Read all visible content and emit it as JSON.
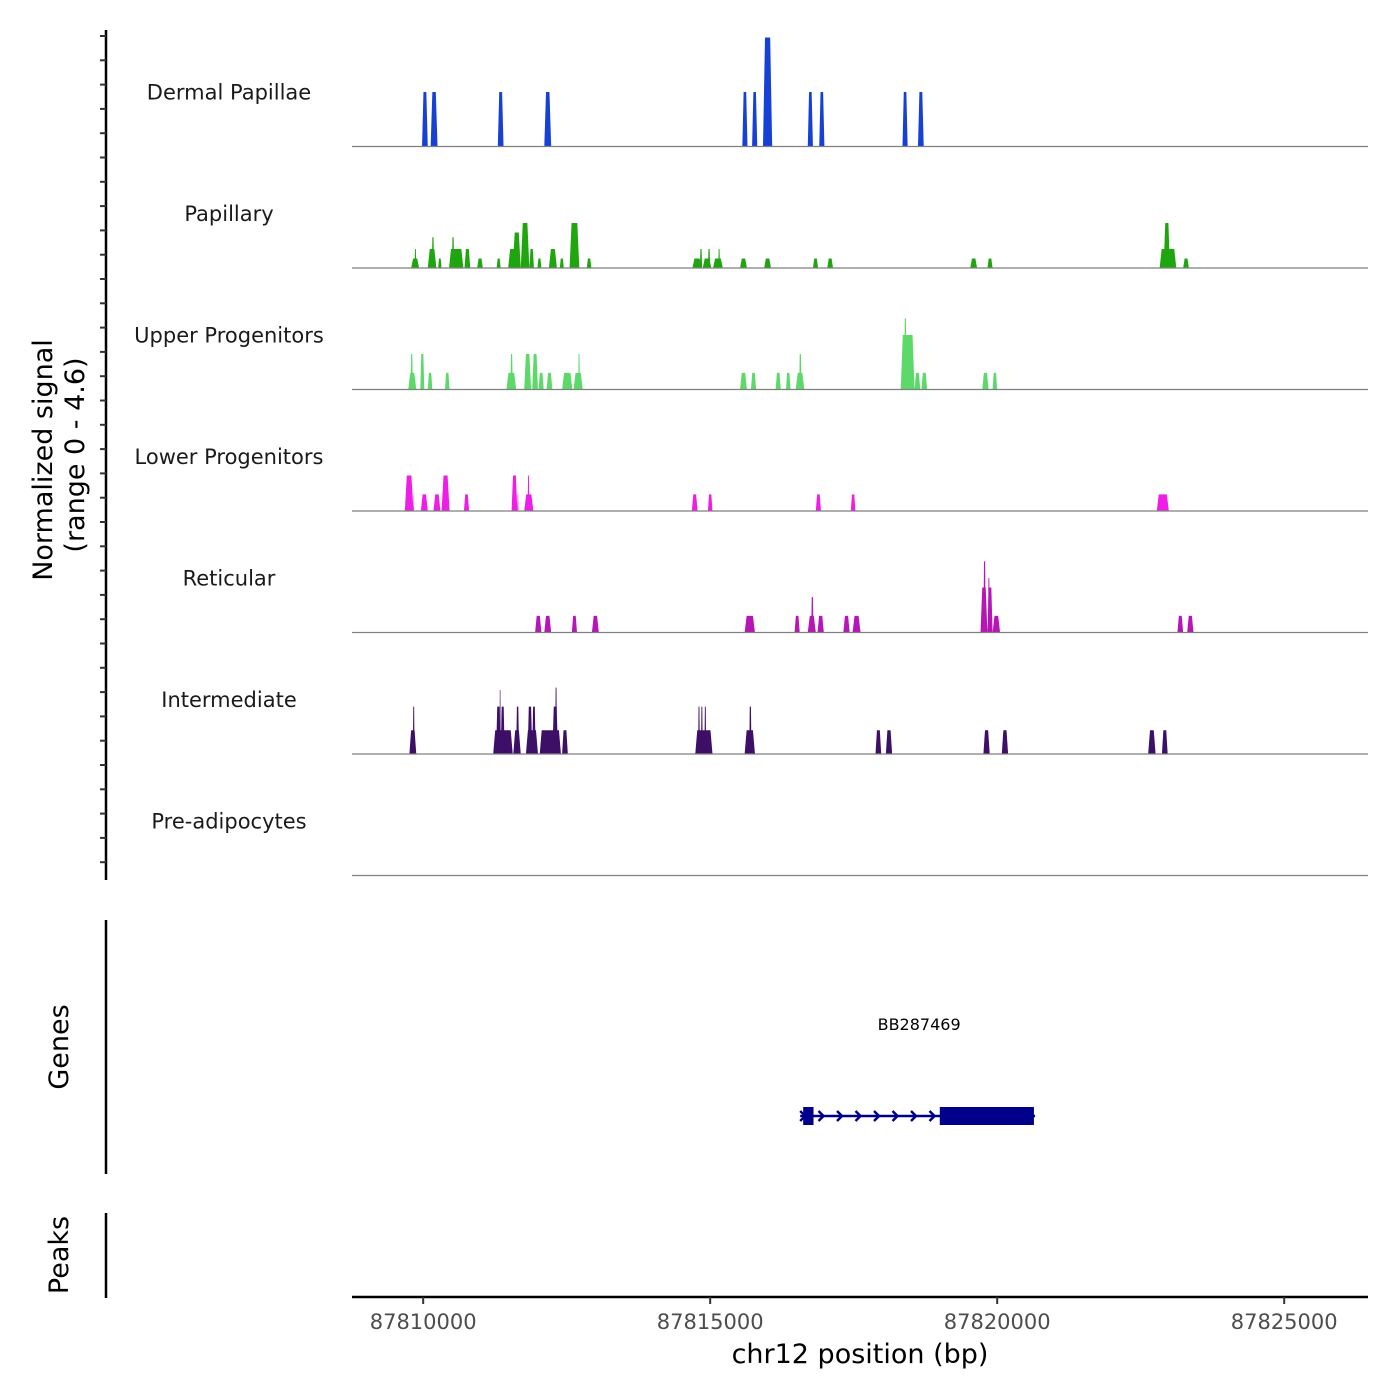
{
  "chart_data": {
    "type": "area",
    "title": "",
    "xlabel": "chr12 position (bp)",
    "ylabel": "Normalized signal\n(range 0 - 4.6)",
    "ylabel_lines": [
      "Normalized signal",
      "(range 0 - 4.6)"
    ],
    "ylim": [
      0,
      4.6
    ],
    "xlim": [
      87808760,
      87826460
    ],
    "x_ticks": [
      87810000,
      87815000,
      87820000,
      87825000
    ],
    "x_tick_labels": [
      "87810000",
      "87815000",
      "87820000",
      "87825000"
    ],
    "grid": false,
    "legend": "none",
    "tracks": [
      {
        "name": "Dermal Papillae",
        "color": "#1740d6",
        "peaks": [
          [
            87809980,
            87810080,
            2.3
          ],
          [
            87810130,
            87810250,
            2.3
          ],
          [
            87811300,
            87811400,
            2.3
          ],
          [
            87812110,
            87812230,
            2.3
          ],
          [
            87815560,
            87815650,
            2.3
          ],
          [
            87815730,
            87815820,
            2.3
          ],
          [
            87815920,
            87816080,
            4.6
          ],
          [
            87816700,
            87816790,
            2.3
          ],
          [
            87816900,
            87816990,
            2.3
          ],
          [
            87818350,
            87818440,
            2.3
          ],
          [
            87818620,
            87818720,
            2.3
          ]
        ]
      },
      {
        "name": "Papillary",
        "color": "#1fa60f",
        "peaks": [
          [
            87809790,
            87809930,
            0.4
          ],
          [
            87809850,
            87809880,
            0.8
          ],
          [
            87810080,
            87810230,
            0.8
          ],
          [
            87810150,
            87810190,
            1.3
          ],
          [
            87810260,
            87810320,
            0.4
          ],
          [
            87810450,
            87810700,
            0.8
          ],
          [
            87810500,
            87810540,
            1.3
          ],
          [
            87810720,
            87810820,
            0.8
          ],
          [
            87810940,
            87811040,
            0.4
          ],
          [
            87811280,
            87811350,
            0.4
          ],
          [
            87811480,
            87811700,
            0.8
          ],
          [
            87811560,
            87811700,
            1.5
          ],
          [
            87811700,
            87811850,
            1.9
          ],
          [
            87811850,
            87811930,
            0.8
          ],
          [
            87811990,
            87812060,
            0.4
          ],
          [
            87812190,
            87812330,
            0.8
          ],
          [
            87812380,
            87812450,
            0.4
          ],
          [
            87812550,
            87812720,
            1.9
          ],
          [
            87812850,
            87812930,
            0.4
          ],
          [
            87814690,
            87814850,
            0.4
          ],
          [
            87814820,
            87814860,
            0.8
          ],
          [
            87814870,
            87815020,
            0.4
          ],
          [
            87814960,
            87815000,
            0.8
          ],
          [
            87815050,
            87815220,
            0.4
          ],
          [
            87815140,
            87815170,
            0.8
          ],
          [
            87815520,
            87815640,
            0.4
          ],
          [
            87815940,
            87816060,
            0.4
          ],
          [
            87816790,
            87816880,
            0.4
          ],
          [
            87817040,
            87817140,
            0.4
          ],
          [
            87819530,
            87819650,
            0.4
          ],
          [
            87819830,
            87819920,
            0.4
          ],
          [
            87822830,
            87823120,
            0.8
          ],
          [
            87822900,
            87823010,
            1.9
          ],
          [
            87823240,
            87823340,
            0.4
          ]
        ]
      },
      {
        "name": "Upper Progenitors",
        "color": "#5dd96a",
        "peaks": [
          [
            87809740,
            87809880,
            0.7
          ],
          [
            87809780,
            87809820,
            1.5
          ],
          [
            87809950,
            87810020,
            1.5
          ],
          [
            87810080,
            87810160,
            0.7
          ],
          [
            87810380,
            87810460,
            0.7
          ],
          [
            87811450,
            87811620,
            0.7
          ],
          [
            87811520,
            87811560,
            1.5
          ],
          [
            87811760,
            87811880,
            1.5
          ],
          [
            87811900,
            87812000,
            1.5
          ],
          [
            87812010,
            87812100,
            0.7
          ],
          [
            87812150,
            87812250,
            0.7
          ],
          [
            87812420,
            87812600,
            0.7
          ],
          [
            87812620,
            87812780,
            0.7
          ],
          [
            87812700,
            87812730,
            1.5
          ],
          [
            87815520,
            87815640,
            0.7
          ],
          [
            87815710,
            87815800,
            0.7
          ],
          [
            87816140,
            87816230,
            0.7
          ],
          [
            87816320,
            87816400,
            0.7
          ],
          [
            87816490,
            87816640,
            0.7
          ],
          [
            87816550,
            87816590,
            1.5
          ],
          [
            87818320,
            87818560,
            2.3
          ],
          [
            87818380,
            87818420,
            3.0
          ],
          [
            87818560,
            87818660,
            0.7
          ],
          [
            87818680,
            87818780,
            0.7
          ],
          [
            87819740,
            87819850,
            0.7
          ],
          [
            87819920,
            87820000,
            0.7
          ]
        ]
      },
      {
        "name": "Lower Progenitors",
        "color": "#ee1ee6",
        "peaks": [
          [
            87809680,
            87809830,
            1.5
          ],
          [
            87809830,
            87809840,
            0.7
          ],
          [
            87809960,
            87810080,
            0.7
          ],
          [
            87810180,
            87810300,
            0.7
          ],
          [
            87810320,
            87810460,
            1.5
          ],
          [
            87810710,
            87810800,
            0.7
          ],
          [
            87811540,
            87811640,
            1.5
          ],
          [
            87811640,
            87811660,
            0.7
          ],
          [
            87811760,
            87811920,
            0.7
          ],
          [
            87811820,
            87811850,
            1.5
          ],
          [
            87814680,
            87814780,
            0.7
          ],
          [
            87814960,
            87815040,
            0.7
          ],
          [
            87816840,
            87816930,
            0.7
          ],
          [
            87817450,
            87817530,
            0.7
          ],
          [
            87822780,
            87822990,
            0.7
          ]
        ]
      },
      {
        "name": "Reticular",
        "color": "#b516b5",
        "peaks": [
          [
            87811950,
            87812060,
            0.7
          ],
          [
            87812110,
            87812230,
            0.7
          ],
          [
            87812590,
            87812680,
            0.7
          ],
          [
            87812940,
            87813060,
            0.7
          ],
          [
            87815600,
            87815780,
            0.7
          ],
          [
            87816470,
            87816560,
            0.7
          ],
          [
            87816700,
            87816840,
            0.7
          ],
          [
            87816760,
            87816800,
            1.5
          ],
          [
            87816870,
            87816980,
            0.7
          ],
          [
            87817320,
            87817430,
            0.7
          ],
          [
            87817480,
            87817620,
            0.7
          ],
          [
            87819710,
            87819830,
            1.9
          ],
          [
            87819760,
            87819800,
            3.0
          ],
          [
            87819830,
            87819920,
            1.9
          ],
          [
            87819840,
            87819870,
            2.3
          ],
          [
            87819920,
            87820050,
            0.7
          ],
          [
            87823140,
            87823240,
            0.7
          ],
          [
            87823310,
            87823420,
            0.7
          ]
        ]
      },
      {
        "name": "Intermediate",
        "color": "#3d0f66",
        "peaks": [
          [
            87809760,
            87809880,
            1.0
          ],
          [
            87809820,
            87809850,
            2.0
          ],
          [
            87811220,
            87811560,
            1.0
          ],
          [
            87811270,
            87811350,
            2.0
          ],
          [
            87811330,
            87811350,
            2.7
          ],
          [
            87811350,
            87811420,
            2.0
          ],
          [
            87811570,
            87811700,
            1.0
          ],
          [
            87811620,
            87811670,
            2.0
          ],
          [
            87811790,
            87812000,
            1.0
          ],
          [
            87811820,
            87811900,
            2.0
          ],
          [
            87811900,
            87811960,
            2.0
          ],
          [
            87812030,
            87812400,
            1.0
          ],
          [
            87812250,
            87812350,
            2.0
          ],
          [
            87812300,
            87812330,
            2.8
          ],
          [
            87812420,
            87812520,
            1.0
          ],
          [
            87814740,
            87815040,
            1.0
          ],
          [
            87814790,
            87814820,
            2.0
          ],
          [
            87814840,
            87814870,
            2.0
          ],
          [
            87814900,
            87814930,
            2.0
          ],
          [
            87815600,
            87815780,
            1.0
          ],
          [
            87815680,
            87815720,
            2.0
          ],
          [
            87817880,
            87817980,
            1.0
          ],
          [
            87818060,
            87818170,
            1.0
          ],
          [
            87819760,
            87819870,
            1.0
          ],
          [
            87820080,
            87820190,
            1.0
          ],
          [
            87822630,
            87822760,
            1.0
          ],
          [
            87822870,
            87822970,
            1.0
          ]
        ]
      },
      {
        "name": "Pre-adipocytes",
        "color": "#f5d800",
        "peaks": []
      }
    ],
    "genes": [
      {
        "name": "BB287469",
        "start": 87816620,
        "end": 87820660,
        "strand": "+",
        "exons": [
          [
            87816620,
            87816800
          ],
          [
            87819000,
            87820640
          ]
        ],
        "color": "#00008b"
      }
    ],
    "gene_track_title": "Genes",
    "peak_track_title": "Peaks",
    "peaks_track": []
  }
}
